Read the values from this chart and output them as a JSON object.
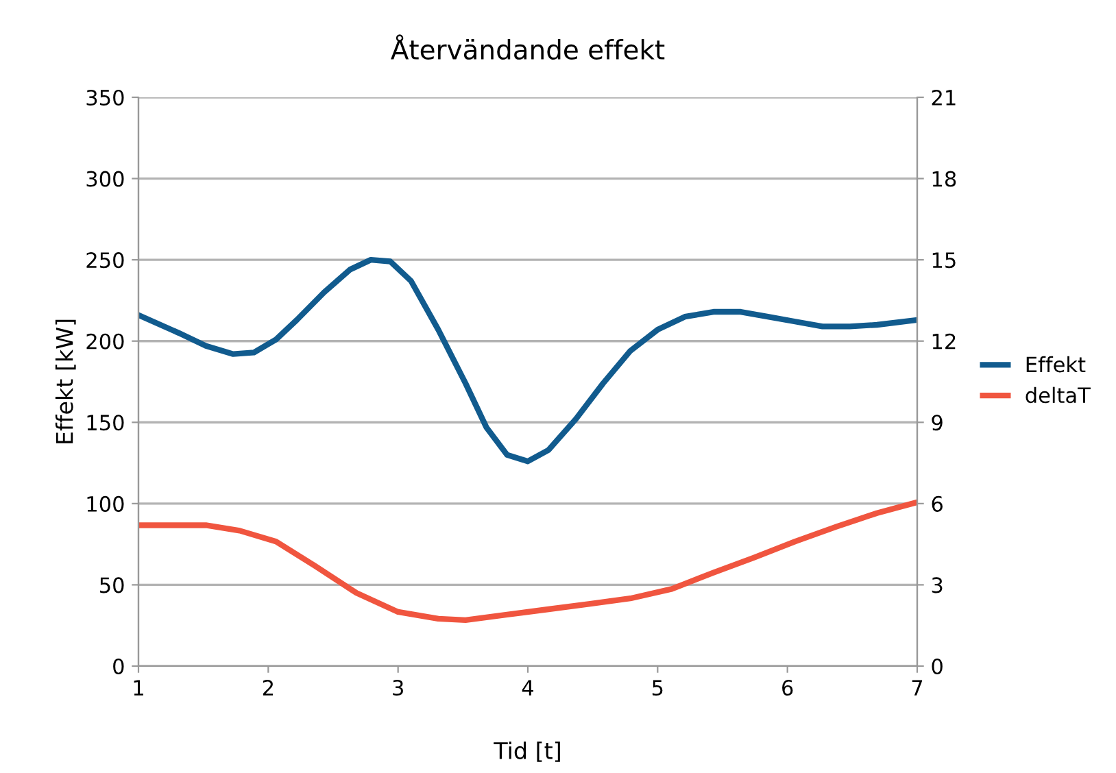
{
  "chart_data": {
    "type": "line",
    "title": "Återvändande effekt",
    "xlabel": "Tid [t]",
    "ylabel": "Effekt [kW]",
    "xlim": [
      1,
      7
    ],
    "xticks": [
      1,
      2,
      3,
      4,
      5,
      6,
      7
    ],
    "ylim": [
      0,
      350
    ],
    "yticks": [
      0,
      50,
      100,
      150,
      200,
      250,
      300,
      350
    ],
    "y2lim": [
      0,
      21
    ],
    "y2ticks": [
      0,
      3,
      6,
      9,
      12,
      15,
      18,
      21
    ],
    "grid": "y",
    "legend": "right",
    "line_style": "solid",
    "marker": "none",
    "series": [
      {
        "name": "Effekt",
        "color": "#115b8e",
        "x": [
          1.0,
          1.31,
          1.52,
          1.73,
          1.89,
          2.06,
          2.22,
          2.43,
          2.63,
          2.79,
          2.94,
          3.1,
          3.31,
          3.52,
          3.68,
          3.84,
          4.0,
          4.16,
          4.37,
          4.58,
          4.79,
          5.0,
          5.21,
          5.43,
          5.64,
          5.85,
          6.06,
          6.27,
          6.48,
          6.69,
          7.0
        ],
        "values": [
          216,
          205,
          197,
          192,
          193,
          201,
          213,
          230,
          244,
          250,
          249,
          237,
          207,
          174,
          147,
          130,
          126,
          133,
          152,
          174,
          194,
          207,
          215,
          218,
          218,
          215,
          212,
          209,
          209,
          210,
          213
        ]
      },
      {
        "name": "deltaT",
        "color": "#f0553f",
        "axis": "y2",
        "x": [
          1.0,
          1.52,
          1.78,
          2.06,
          2.36,
          2.68,
          3.0,
          3.31,
          3.52,
          3.84,
          4.16,
          4.48,
          4.79,
          5.11,
          5.43,
          5.74,
          6.06,
          6.38,
          6.69,
          7.0
        ],
        "values": [
          5.2,
          5.2,
          5.0,
          4.6,
          3.7,
          2.7,
          2.0,
          1.75,
          1.7,
          1.9,
          2.1,
          2.3,
          2.5,
          2.85,
          3.45,
          4.0,
          4.6,
          5.15,
          5.65,
          6.05
        ]
      }
    ]
  }
}
